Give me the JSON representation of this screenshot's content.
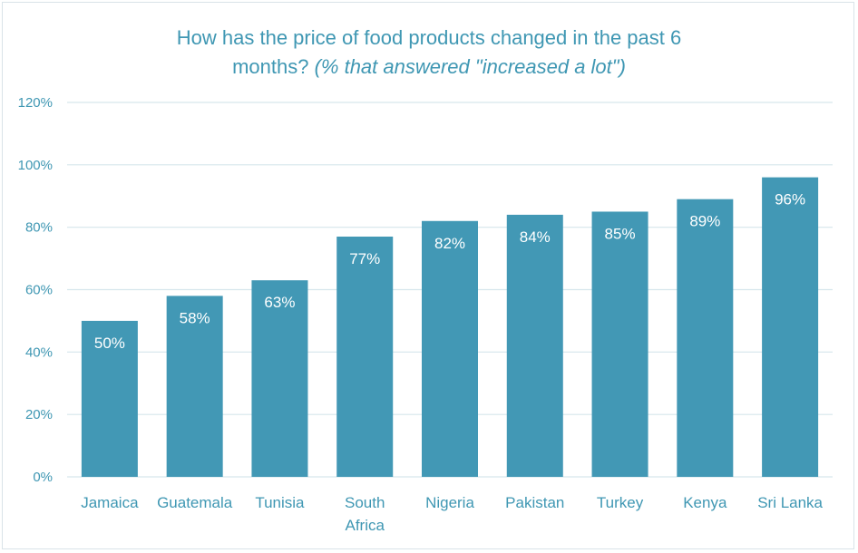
{
  "chart_data": {
    "type": "bar",
    "title_line1": "How has the price of food products changed in the past 6",
    "title_line2_main": "months?",
    "title_line2_italic": "(% that answered \"increased a lot\")",
    "categories": [
      "Jamaica",
      "Guatemala",
      "Tunisia",
      "South Africa",
      "Nigeria",
      "Pakistan",
      "Turkey",
      "Kenya",
      "Sri Lanka"
    ],
    "category_lines": [
      [
        "Jamaica"
      ],
      [
        "Guatemala"
      ],
      [
        "Tunisia"
      ],
      [
        "South",
        "Africa"
      ],
      [
        "Nigeria"
      ],
      [
        "Pakistan"
      ],
      [
        "Turkey"
      ],
      [
        "Kenya"
      ],
      [
        "Sri Lanka"
      ]
    ],
    "values": [
      50,
      58,
      63,
      77,
      82,
      84,
      85,
      89,
      96
    ],
    "data_labels": [
      "50%",
      "58%",
      "63%",
      "77%",
      "82%",
      "84%",
      "85%",
      "89%",
      "96%"
    ],
    "yticks": [
      0,
      20,
      40,
      60,
      80,
      100,
      120
    ],
    "ytick_labels": [
      "0%",
      "20%",
      "40%",
      "60%",
      "80%",
      "100%",
      "120%"
    ],
    "ylim": [
      0,
      120
    ],
    "grid": true,
    "legend": "none",
    "colors": {
      "bar": "#4298b5",
      "title": "#3f97b3",
      "axis_text": "#3f97b3",
      "data_label": "#ffffff",
      "grid": "#d6e6ec"
    }
  }
}
